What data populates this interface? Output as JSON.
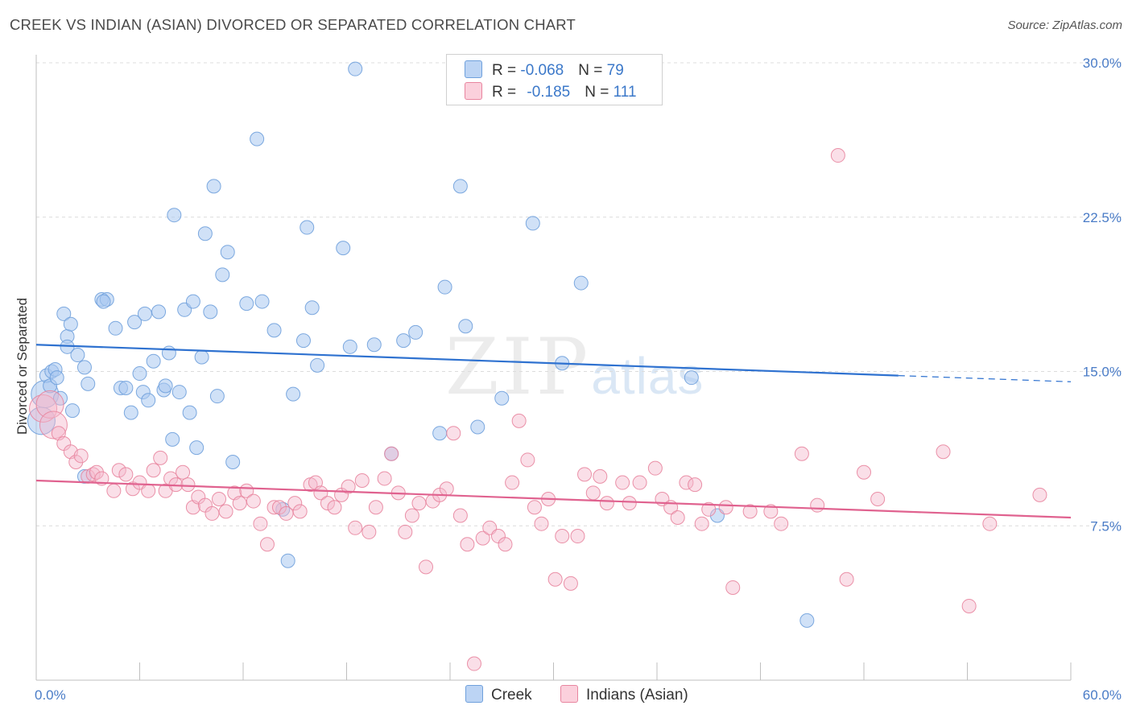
{
  "title": "CREEK VS INDIAN (ASIAN) DIVORCED OR SEPARATED CORRELATION CHART",
  "source": "Source: ZipAtlas.com",
  "watermark": {
    "zip": "ZIP",
    "atlas": "atlas"
  },
  "legend": {
    "rows": [
      {
        "r_label": "R = ",
        "r_value": "-0.068",
        "n_label": "N = ",
        "n_value": "79",
        "color": "#a9c8f0"
      },
      {
        "r_label": "R = ",
        "r_value": "-0.185",
        "n_label": "N = ",
        "n_value": "111",
        "color": "#f5b8cb"
      }
    ]
  },
  "bottom_legend": [
    {
      "label": "Creek",
      "color": "#a9c8f0"
    },
    {
      "label": "Indians (Asian)",
      "color": "#f5b8cb"
    }
  ],
  "chart_data": {
    "type": "scatter",
    "title": "CREEK VS INDIAN (ASIAN) DIVORCED OR SEPARATED CORRELATION CHART",
    "xlabel": "",
    "ylabel": "Divorced or Separated",
    "xlim": [
      0,
      60
    ],
    "ylim": [
      0,
      30
    ],
    "x_tick_labels": [
      "0.0%",
      "60.0%"
    ],
    "y_ticks": [
      7.5,
      15.0,
      22.5,
      30.0
    ],
    "y_tick_labels": [
      "7.5%",
      "15.0%",
      "22.5%",
      "30.0%"
    ],
    "grid": "horizontal dashed",
    "series": [
      {
        "name": "Creek",
        "color": "#6fa0dc",
        "fill": "#a9c8f0",
        "trend": {
          "x": [
            0,
            50
          ],
          "y": [
            16.3,
            14.8
          ],
          "dashed_to_x": 60,
          "dashed_y_end": 14.5,
          "color": "#2f72d0"
        },
        "points": [
          [
            0.3,
            12.6
          ],
          [
            0.5,
            13.9
          ],
          [
            0.6,
            14.8
          ],
          [
            0.8,
            14.3
          ],
          [
            0.9,
            15.0
          ],
          [
            1.1,
            15.1
          ],
          [
            1.2,
            14.7
          ],
          [
            1.4,
            13.7
          ],
          [
            1.6,
            17.8
          ],
          [
            1.8,
            16.7
          ],
          [
            2.0,
            17.3
          ],
          [
            2.1,
            13.1
          ],
          [
            1.8,
            16.2
          ],
          [
            2.4,
            15.8
          ],
          [
            2.8,
            15.2
          ],
          [
            3.0,
            14.4
          ],
          [
            3.8,
            18.5
          ],
          [
            4.1,
            18.5
          ],
          [
            3.9,
            18.4
          ],
          [
            4.6,
            17.1
          ],
          [
            4.9,
            14.2
          ],
          [
            5.2,
            14.2
          ],
          [
            5.5,
            13.0
          ],
          [
            5.7,
            17.4
          ],
          [
            6.0,
            14.9
          ],
          [
            6.3,
            17.8
          ],
          [
            6.2,
            14.0
          ],
          [
            6.5,
            13.6
          ],
          [
            6.8,
            15.5
          ],
          [
            7.1,
            17.9
          ],
          [
            7.4,
            14.1
          ],
          [
            7.5,
            14.3
          ],
          [
            7.7,
            15.9
          ],
          [
            7.9,
            11.7
          ],
          [
            8.0,
            22.6
          ],
          [
            8.3,
            14.0
          ],
          [
            8.6,
            18.0
          ],
          [
            8.9,
            13.0
          ],
          [
            9.1,
            18.4
          ],
          [
            9.3,
            11.3
          ],
          [
            9.6,
            15.7
          ],
          [
            9.8,
            21.7
          ],
          [
            10.1,
            17.9
          ],
          [
            10.3,
            24.0
          ],
          [
            10.5,
            13.8
          ],
          [
            10.8,
            19.7
          ],
          [
            11.1,
            20.8
          ],
          [
            11.4,
            10.6
          ],
          [
            12.2,
            18.3
          ],
          [
            12.8,
            26.3
          ],
          [
            13.1,
            18.4
          ],
          [
            13.8,
            17.0
          ],
          [
            14.3,
            8.3
          ],
          [
            14.6,
            5.8
          ],
          [
            14.9,
            13.9
          ],
          [
            15.5,
            16.5
          ],
          [
            15.7,
            22.0
          ],
          [
            16.0,
            18.1
          ],
          [
            16.3,
            15.3
          ],
          [
            17.8,
            21.0
          ],
          [
            18.2,
            16.2
          ],
          [
            18.5,
            29.7
          ],
          [
            19.6,
            16.3
          ],
          [
            20.6,
            11.0
          ],
          [
            21.3,
            16.5
          ],
          [
            22.0,
            16.9
          ],
          [
            23.4,
            12.0
          ],
          [
            23.7,
            19.1
          ],
          [
            24.6,
            24.0
          ],
          [
            24.9,
            17.2
          ],
          [
            25.6,
            12.3
          ],
          [
            27.0,
            13.7
          ],
          [
            28.8,
            22.2
          ],
          [
            30.5,
            15.4
          ],
          [
            31.6,
            19.3
          ],
          [
            38.0,
            14.7
          ],
          [
            39.5,
            8.0
          ],
          [
            44.7,
            2.9
          ],
          [
            2.8,
            9.9
          ]
        ]
      },
      {
        "name": "Indians (Asian)",
        "color": "#e8859f",
        "fill": "#f5b8cb",
        "trend": {
          "x": [
            0,
            60
          ],
          "y": [
            9.7,
            7.9
          ],
          "color": "#e0628f"
        },
        "points": [
          [
            0.4,
            13.2
          ],
          [
            0.8,
            13.4
          ],
          [
            1.0,
            12.4
          ],
          [
            1.3,
            12.0
          ],
          [
            1.6,
            11.5
          ],
          [
            2.0,
            11.1
          ],
          [
            2.3,
            10.6
          ],
          [
            2.6,
            10.9
          ],
          [
            3.0,
            9.9
          ],
          [
            3.3,
            10.0
          ],
          [
            3.5,
            10.1
          ],
          [
            3.8,
            9.8
          ],
          [
            4.5,
            9.2
          ],
          [
            4.8,
            10.2
          ],
          [
            5.2,
            10.0
          ],
          [
            5.6,
            9.3
          ],
          [
            6.0,
            9.6
          ],
          [
            6.5,
            9.2
          ],
          [
            6.8,
            10.2
          ],
          [
            7.2,
            10.8
          ],
          [
            7.5,
            9.2
          ],
          [
            7.8,
            9.8
          ],
          [
            8.1,
            9.5
          ],
          [
            8.5,
            10.1
          ],
          [
            8.8,
            9.5
          ],
          [
            9.1,
            8.4
          ],
          [
            9.4,
            8.9
          ],
          [
            9.8,
            8.5
          ],
          [
            10.2,
            8.1
          ],
          [
            10.6,
            8.8
          ],
          [
            11.0,
            8.2
          ],
          [
            11.5,
            9.1
          ],
          [
            11.8,
            8.6
          ],
          [
            12.2,
            9.2
          ],
          [
            12.6,
            8.7
          ],
          [
            13.0,
            7.6
          ],
          [
            13.4,
            6.6
          ],
          [
            13.8,
            8.4
          ],
          [
            14.1,
            8.4
          ],
          [
            14.5,
            8.1
          ],
          [
            15.0,
            8.6
          ],
          [
            15.3,
            8.2
          ],
          [
            15.9,
            9.5
          ],
          [
            16.2,
            9.6
          ],
          [
            16.5,
            9.1
          ],
          [
            16.9,
            8.6
          ],
          [
            17.3,
            8.4
          ],
          [
            17.7,
            9.0
          ],
          [
            18.1,
            9.4
          ],
          [
            18.5,
            7.4
          ],
          [
            18.9,
            9.7
          ],
          [
            19.3,
            7.2
          ],
          [
            19.7,
            8.4
          ],
          [
            20.2,
            9.8
          ],
          [
            20.6,
            11.0
          ],
          [
            21.0,
            9.1
          ],
          [
            21.4,
            7.2
          ],
          [
            21.8,
            8.0
          ],
          [
            22.2,
            8.6
          ],
          [
            22.6,
            5.5
          ],
          [
            23.0,
            8.7
          ],
          [
            23.4,
            9.0
          ],
          [
            23.8,
            9.3
          ],
          [
            24.2,
            12.0
          ],
          [
            24.6,
            8.0
          ],
          [
            25.0,
            6.6
          ],
          [
            25.4,
            0.8
          ],
          [
            25.9,
            6.9
          ],
          [
            26.3,
            7.4
          ],
          [
            26.8,
            7.0
          ],
          [
            27.2,
            6.6
          ],
          [
            27.6,
            9.6
          ],
          [
            28.0,
            12.6
          ],
          [
            28.5,
            10.7
          ],
          [
            28.9,
            8.4
          ],
          [
            29.3,
            7.6
          ],
          [
            29.7,
            8.8
          ],
          [
            30.1,
            4.9
          ],
          [
            30.5,
            7.0
          ],
          [
            31.0,
            4.7
          ],
          [
            31.4,
            7.0
          ],
          [
            31.8,
            10.0
          ],
          [
            32.3,
            9.1
          ],
          [
            32.7,
            9.9
          ],
          [
            33.1,
            8.6
          ],
          [
            34.0,
            9.6
          ],
          [
            34.4,
            8.6
          ],
          [
            35.0,
            9.6
          ],
          [
            35.9,
            10.3
          ],
          [
            36.3,
            8.8
          ],
          [
            36.8,
            8.4
          ],
          [
            37.2,
            7.9
          ],
          [
            37.7,
            9.6
          ],
          [
            38.2,
            9.5
          ],
          [
            38.6,
            7.6
          ],
          [
            39.0,
            8.3
          ],
          [
            40.0,
            8.4
          ],
          [
            40.4,
            4.5
          ],
          [
            41.4,
            8.2
          ],
          [
            42.6,
            8.2
          ],
          [
            43.2,
            7.6
          ],
          [
            44.4,
            11.0
          ],
          [
            45.3,
            8.5
          ],
          [
            46.5,
            25.5
          ],
          [
            47.0,
            4.9
          ],
          [
            48.0,
            10.1
          ],
          [
            48.8,
            8.8
          ],
          [
            52.6,
            11.1
          ],
          [
            54.1,
            3.6
          ],
          [
            55.3,
            7.6
          ],
          [
            58.2,
            9.0
          ]
        ]
      }
    ]
  }
}
